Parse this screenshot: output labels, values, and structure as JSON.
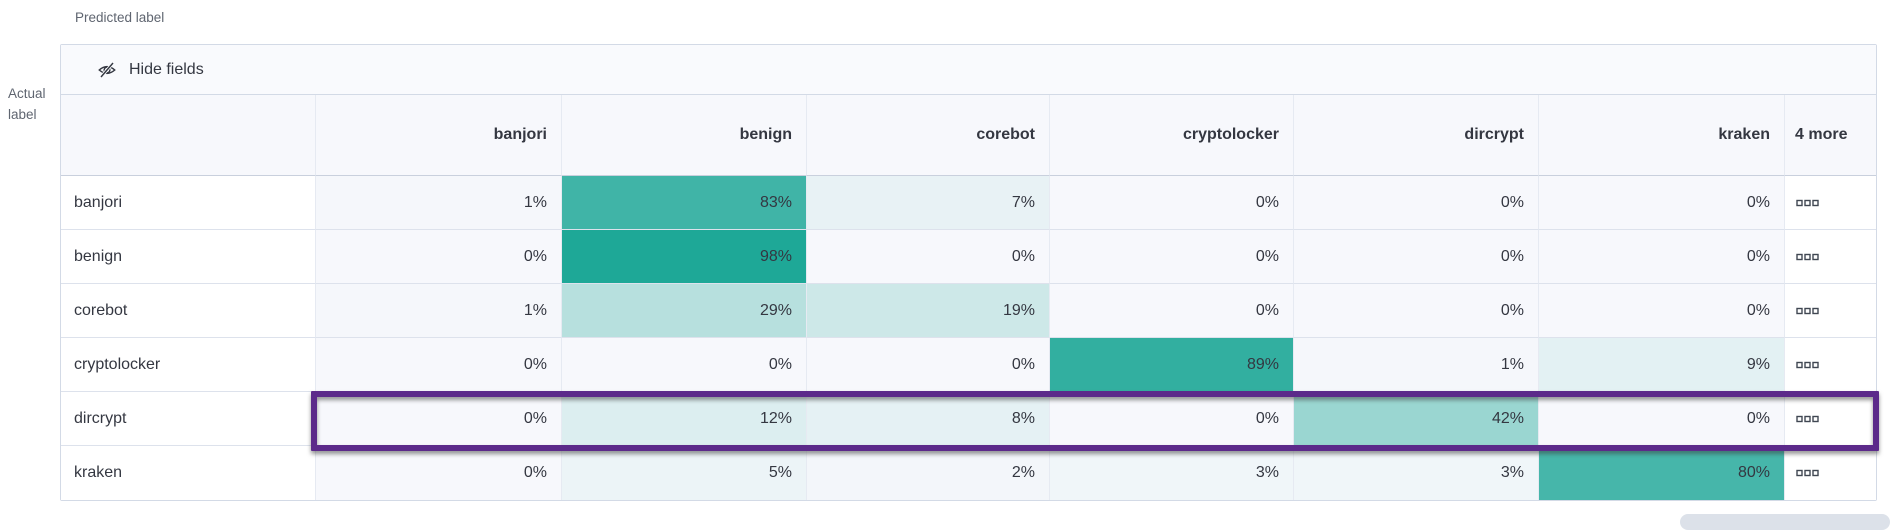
{
  "axis": {
    "predicted_label": "Predicted label",
    "actual_label": "Actual label"
  },
  "toolbar": {
    "hide_fields_label": "Hide fields"
  },
  "icons": {
    "hide_fields": "eye-closed-icon",
    "row_actions": "boxes-horizontal-icon"
  },
  "chart_data": {
    "type": "heatmap",
    "columns": [
      "banjori",
      "benign",
      "corebot",
      "cryptolocker",
      "dircrypt",
      "kraken"
    ],
    "extra_columns_header": "4 more",
    "rows": [
      "banjori",
      "benign",
      "corebot",
      "cryptolocker",
      "dircrypt",
      "kraken"
    ],
    "unit": "%",
    "values_percent": [
      [
        1,
        83,
        7,
        0,
        0,
        0
      ],
      [
        0,
        98,
        0,
        0,
        0,
        0
      ],
      [
        1,
        29,
        19,
        0,
        0,
        0
      ],
      [
        0,
        0,
        0,
        89,
        1,
        9
      ],
      [
        0,
        12,
        8,
        0,
        42,
        0
      ],
      [
        0,
        5,
        2,
        3,
        3,
        80
      ]
    ],
    "highlighted_row": "dircrypt",
    "legend_position": "none",
    "colors": {
      "cell_base": "#1AA695",
      "cell_background": "#F7F8FC",
      "highlight_border": "#5C2A8A"
    }
  }
}
